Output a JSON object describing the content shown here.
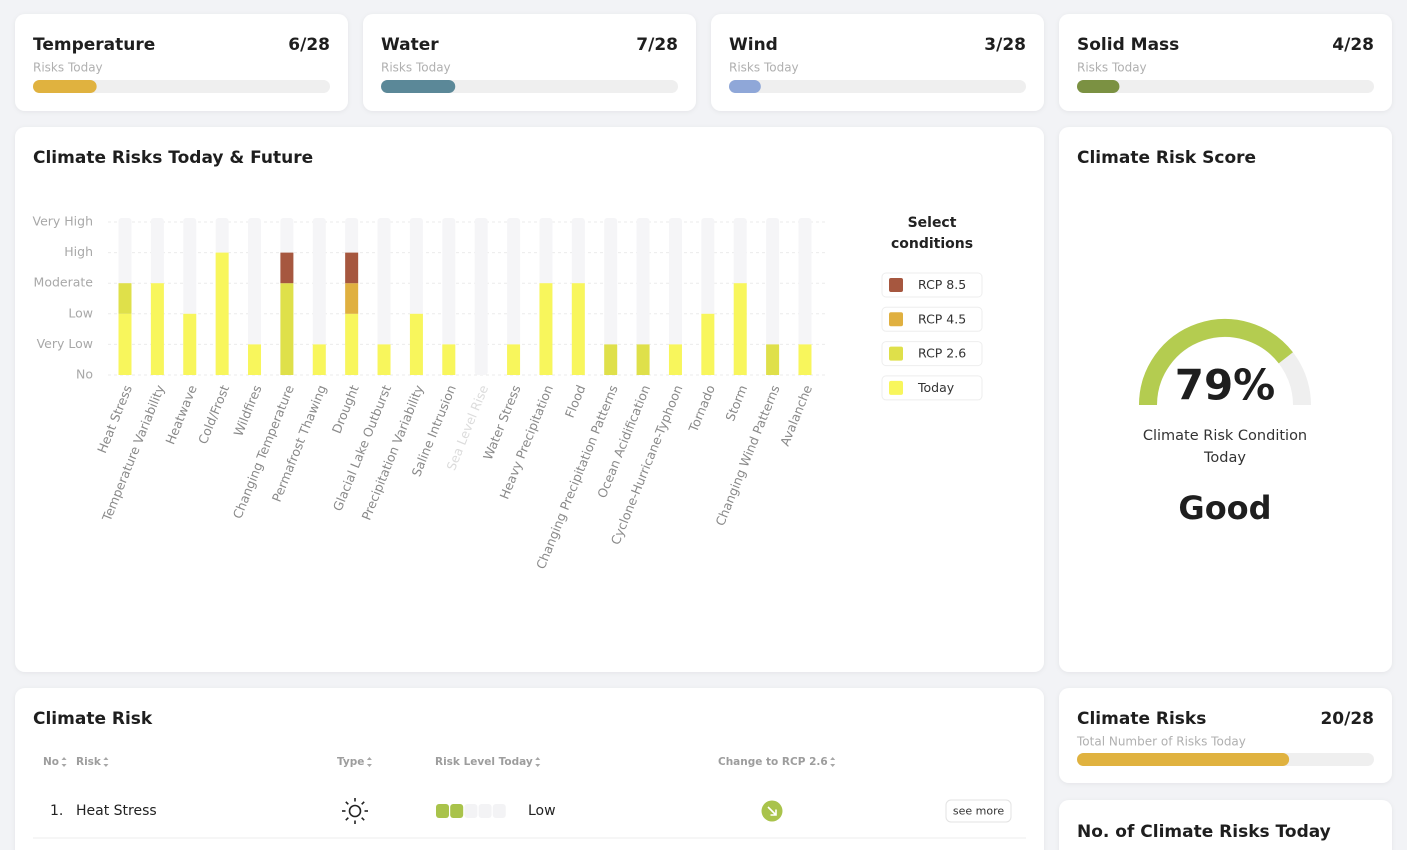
{
  "kpis": [
    {
      "title": "Temperature",
      "subtitle": "Risks Today",
      "value_label": "6/28",
      "count": 6,
      "total": 28,
      "color": "#e0b23f"
    },
    {
      "title": "Water",
      "subtitle": "Risks Today",
      "value_label": "7/28",
      "count": 7,
      "total": 28,
      "color": "#5b8898"
    },
    {
      "title": "Wind",
      "subtitle": "Risks Today",
      "value_label": "3/28",
      "count": 3,
      "total": 28,
      "color": "#8fa7d8"
    },
    {
      "title": "Solid Mass",
      "subtitle": "Risks Today",
      "value_label": "4/28",
      "count": 4,
      "total": 28,
      "color": "#7b9142"
    }
  ],
  "chart_data": {
    "type": "bar",
    "stacked": true,
    "title": "Climate Risks Today & Future",
    "legend_title": "Select conditions",
    "legend": "right",
    "grid": true,
    "categories": [
      "Heat Stress",
      "Temperature Variability",
      "Heatwave",
      "Cold/Frost",
      "Wildfires",
      "Changing Temperature",
      "Permafrost Thawing",
      "Drought",
      "Glacial Lake Outburst",
      "Precipitation Variability",
      "Saline Intrusion",
      "Sea Level Rise",
      "Water Stress",
      "Heavy Precipitation",
      "Flood",
      "Changing Precipitation Patterns",
      "Ocean Acidification",
      "Cyclone-Hurricane-Typhoon",
      "Tornado",
      "Storm",
      "Changing Wind Patterns",
      "Avalanche"
    ],
    "series": [
      {
        "name": "Today",
        "color": "#f8f65c",
        "values": [
          2,
          3,
          2,
          4,
          1,
          0,
          1,
          2,
          1,
          2,
          1,
          0,
          1,
          3,
          3,
          0,
          0,
          1,
          2,
          3,
          0,
          1
        ]
      },
      {
        "name": "RCP 2.6",
        "color": "#dfe04a",
        "values": [
          1,
          0,
          0,
          0,
          0,
          3,
          0,
          0,
          0,
          0,
          0,
          0,
          0,
          0,
          0,
          1,
          1,
          0,
          0,
          0,
          1,
          0
        ]
      },
      {
        "name": "RCP 4.5",
        "color": "#e0b040",
        "values": [
          0,
          0,
          0,
          0,
          0,
          0,
          0,
          1,
          0,
          0,
          0,
          0,
          0,
          0,
          0,
          0,
          0,
          0,
          0,
          0,
          0,
          0
        ]
      },
      {
        "name": "RCP 8.5",
        "color": "#a6573f",
        "values": [
          0,
          0,
          0,
          0,
          0,
          1,
          0,
          1,
          0,
          0,
          0,
          0,
          0,
          0,
          0,
          0,
          0,
          0,
          0,
          0,
          0,
          0
        ]
      }
    ],
    "ylim": [
      0,
      5
    ],
    "yticks": [
      {
        "value": 0,
        "label": "No"
      },
      {
        "value": 1,
        "label": "Very Low"
      },
      {
        "value": 2,
        "label": "Low"
      },
      {
        "value": 3,
        "label": "Moderate"
      },
      {
        "value": 4,
        "label": "High"
      },
      {
        "value": 5,
        "label": "Very High"
      }
    ]
  },
  "score": {
    "title": "Climate Risk Score",
    "value": 79,
    "value_label": "79%",
    "lim": [
      0,
      100
    ],
    "color": "#b4cc50",
    "caption": "Climate Risk Condition Today",
    "condition": "Good"
  },
  "table": {
    "title": "Climate Risk",
    "columns": [
      "No",
      "Risk",
      "Type",
      "Risk Level Today",
      "Change to RCP 2.6"
    ],
    "rows": [
      {
        "no": "1.",
        "risk": "Heat Stress",
        "level": 2,
        "level_label": "Low",
        "level_lim": [
          0,
          5
        ],
        "color": "#a9c34b",
        "action": "see more"
      }
    ]
  },
  "totals": {
    "title": "Climate Risks",
    "subtitle": "Total Number of Risks Today",
    "value_label": "20/28",
    "count": 20,
    "total": 28,
    "color": "#e0b23f"
  },
  "bottom_card": {
    "title": "No. of Climate Risks Today"
  }
}
